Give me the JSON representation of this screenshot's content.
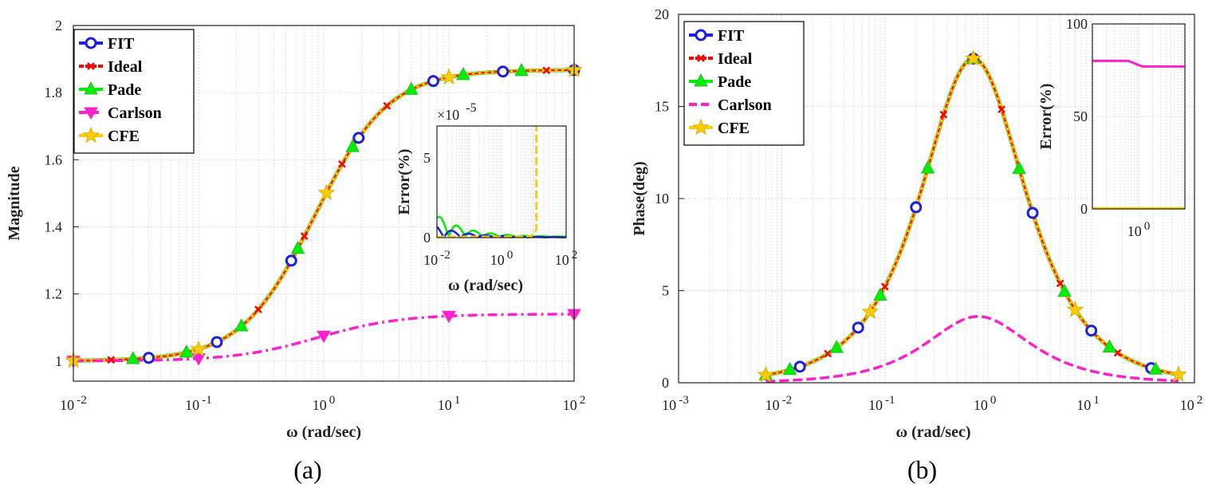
{
  "chart_data": [
    {
      "type": "line",
      "panel": "a",
      "caption": "(a)",
      "xscale": "log",
      "xlim": [
        0.01,
        100
      ],
      "ylim": [
        0.94,
        2.0
      ],
      "xlabel": "ω (rad/sec)",
      "ylabel": "Magnitude",
      "yticks": [
        "1",
        "1.2",
        "1.4",
        "1.6",
        "1.8",
        "2"
      ],
      "ytick_values": [
        1,
        1.2,
        1.4,
        1.6,
        1.8,
        2
      ],
      "xticks": [
        {
          "base": "10",
          "exp": "-2",
          "value": 0.01
        },
        {
          "base": "10",
          "exp": "-1",
          "value": 0.1
        },
        {
          "base": "10",
          "exp": "0",
          "value": 1
        },
        {
          "base": "10",
          "exp": "1",
          "value": 10
        },
        {
          "base": "10",
          "exp": "2",
          "value": 100
        }
      ],
      "grid": true,
      "legend_position": "top-left",
      "model": {
        "kind": "magnitude",
        "low": 1.0,
        "high": 1.868,
        "center": 0.85,
        "steepness": 3.4
      },
      "carlson_model": {
        "kind": "magnitude",
        "low": 1.0,
        "high": 1.14,
        "center": 0.9,
        "steepness": 3.0
      },
      "series": [
        {
          "name": "FIT",
          "color": "#1f1fe0",
          "marker": "circle",
          "x": [
            0.04,
            0.14,
            0.55,
            1.9,
            7.5,
            27,
            100
          ]
        },
        {
          "name": "Ideal",
          "color": "#ff0000",
          "marker": "x",
          "x": [
            0.02,
            0.3,
            0.7,
            1.4,
            3.2,
            60
          ]
        },
        {
          "name": "Pade",
          "color": "#00ee00",
          "marker": "triangle-up",
          "x": [
            0.03,
            0.08,
            0.22,
            0.62,
            1.7,
            5,
            13,
            38
          ]
        },
        {
          "name": "Carlson",
          "color": "#ff22cc",
          "marker": "triangle-down",
          "x": [
            0.01,
            0.1,
            1.0,
            10,
            100
          ]
        },
        {
          "name": "CFE",
          "color": "#ffcc00",
          "marker": "star",
          "x": [
            0.01,
            0.1,
            1.05,
            10,
            100
          ]
        }
      ],
      "inset": {
        "xscale": "log",
        "xlim": [
          0.01,
          100
        ],
        "ylim": [
          0,
          7
        ],
        "multiplier": "×10",
        "multiplier_exp": "-5",
        "ylabel": "Error(%)",
        "xlabel": "ω (rad/sec)",
        "yticks": [
          "0",
          "5"
        ],
        "ytick_values": [
          0,
          5
        ],
        "xticks": [
          {
            "base": "10",
            "exp": "-2",
            "value": 0.01
          },
          {
            "base": "10",
            "exp": "0",
            "value": 1
          },
          {
            "base": "10",
            "exp": "2",
            "value": 100
          }
        ]
      }
    },
    {
      "type": "line",
      "panel": "b",
      "caption": "(b)",
      "xscale": "log",
      "xlim": [
        0.001,
        100
      ],
      "ylim": [
        0,
        20
      ],
      "xlabel": "ω (rad/sec)",
      "ylabel": "Phase(deg)",
      "yticks": [
        "0",
        "5",
        "10",
        "15",
        "20"
      ],
      "ytick_values": [
        0,
        5,
        10,
        15,
        20
      ],
      "xticks": [
        {
          "base": "10",
          "exp": "-3",
          "value": 0.001
        },
        {
          "base": "10",
          "exp": "-2",
          "value": 0.01
        },
        {
          "base": "10",
          "exp": "-1",
          "value": 0.1
        },
        {
          "base": "10",
          "exp": "0",
          "value": 1
        },
        {
          "base": "10",
          "exp": "1",
          "value": 10
        },
        {
          "base": "10",
          "exp": "2",
          "value": 100
        }
      ],
      "grid": true,
      "legend_position": "top-left",
      "curve_range": [
        0.007,
        70
      ],
      "model": {
        "kind": "phase",
        "peak": 17.6,
        "center": 0.72
      },
      "carlson_model": {
        "kind": "phase",
        "peak": 3.6,
        "center": 0.8
      },
      "series": [
        {
          "name": "FIT",
          "color": "#1f1fe0",
          "marker": "circle",
          "x": [
            0.015,
            0.055,
            0.2,
            0.72,
            2.7,
            10,
            38
          ]
        },
        {
          "name": "Ideal",
          "color": "#ff0000",
          "marker": "x",
          "x": [
            0.028,
            0.1,
            0.37,
            1.35,
            5,
            18
          ]
        },
        {
          "name": "Pade",
          "color": "#00ee00",
          "marker": "triangle-up",
          "x": [
            0.007,
            0.012,
            0.034,
            0.09,
            0.26,
            0.72,
            2.0,
            5.5,
            15,
            42
          ]
        },
        {
          "name": "Carlson",
          "color": "#ff22cc",
          "marker": "none",
          "x": []
        },
        {
          "name": "CFE",
          "color": "#ffcc00",
          "marker": "star",
          "x": [
            0.007,
            0.072,
            0.72,
            7,
            70
          ]
        }
      ],
      "inset": {
        "xscale": "log",
        "xlim": [
          0.1,
          10
        ],
        "ylim": [
          0,
          100
        ],
        "ylabel": "Error(%)",
        "yticks": [
          "0",
          "50",
          "100"
        ],
        "ytick_values": [
          0,
          50,
          100
        ],
        "xticks": [
          {
            "base": "10",
            "exp": "0",
            "value": 1
          }
        ],
        "lines": [
          {
            "name": "Carlson",
            "color": "#ff22cc",
            "points": [
              [
                0.1,
                80
              ],
              [
                0.6,
                80
              ],
              [
                1.2,
                77
              ],
              [
                10,
                77
              ]
            ]
          },
          {
            "name": "CFE",
            "color": "#ffcc00",
            "points": [
              [
                0.1,
                0.3
              ],
              [
                10,
                0.3
              ]
            ]
          }
        ]
      }
    }
  ]
}
